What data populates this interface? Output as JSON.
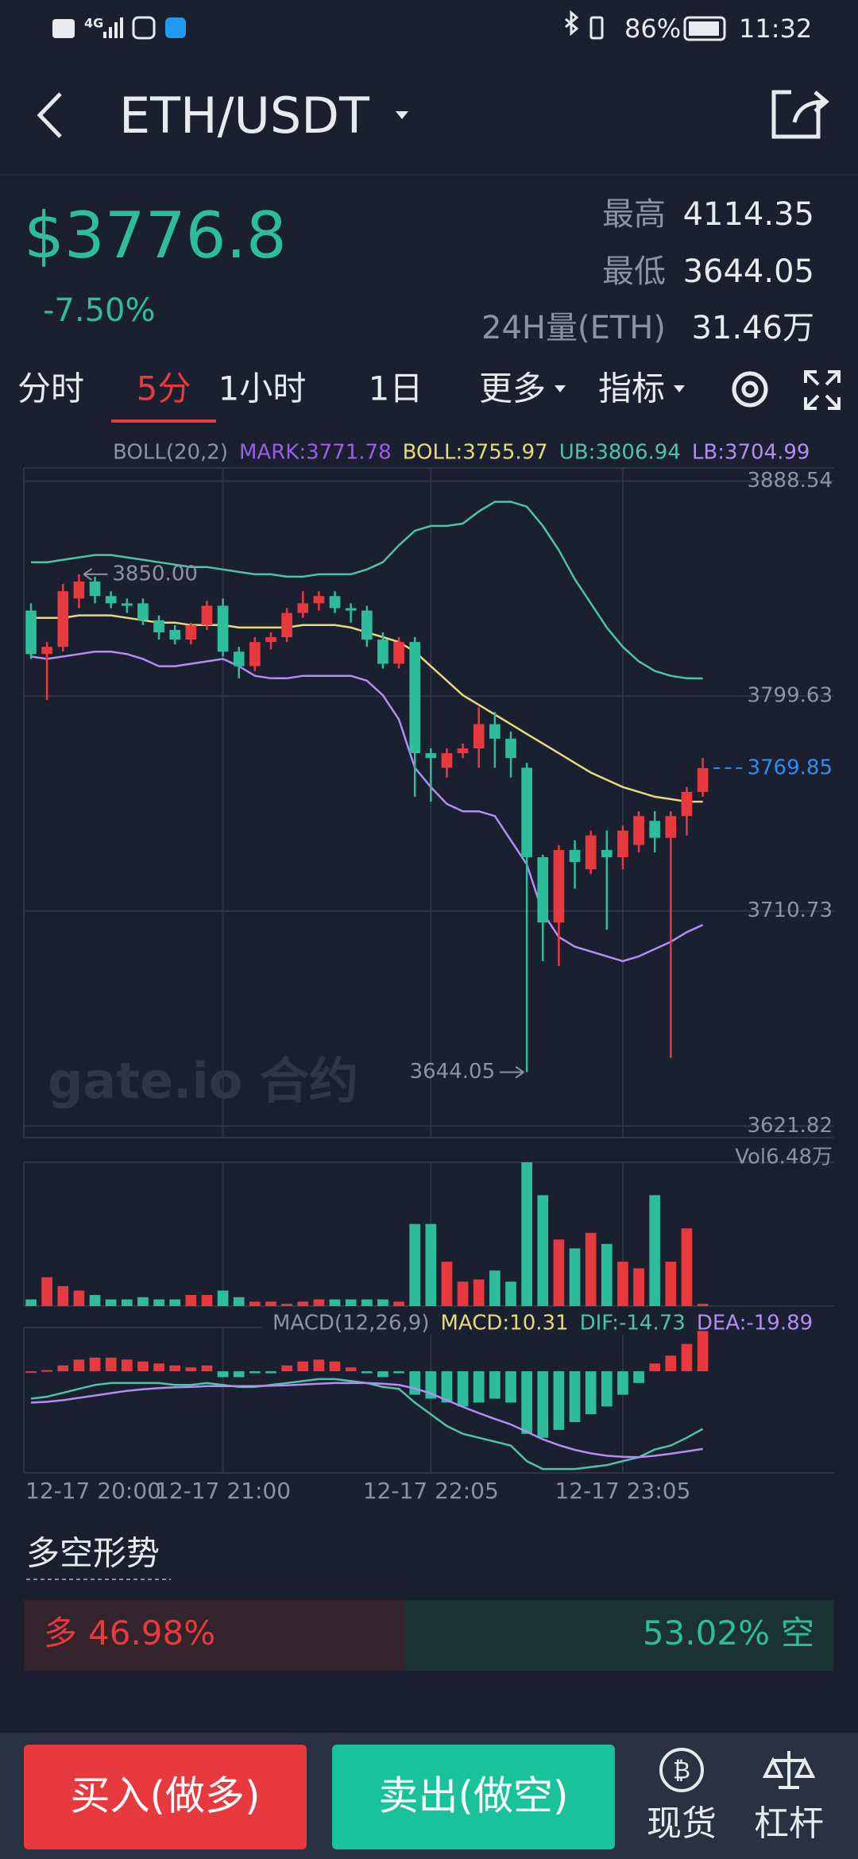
{
  "status_bar": {
    "network": "4G",
    "battery": "86%",
    "time": "11:32"
  },
  "header": {
    "title": "ETH/USDT"
  },
  "ticker": {
    "price": "$3776.8",
    "change": "-7.50%",
    "high_label": "最高",
    "high": "4114.35",
    "low_label": "最低",
    "low": "3644.05",
    "volume_label": "24H量(ETH)",
    "volume": "31.46万"
  },
  "tabs": {
    "items": [
      "分时",
      "5分",
      "1小时",
      "1日",
      "更多",
      "指标"
    ],
    "active": 1
  },
  "watermark": "gate.io 合约",
  "chart_data": [
    {
      "type": "candlestick",
      "legend": [
        {
          "text": "BOLL(20,2)",
          "color": "#8a93a6"
        },
        {
          "text": "MARK:3771.78",
          "color": "#9b5de5"
        },
        {
          "text": "BOLL:3755.97",
          "color": "#e6d97a"
        },
        {
          "text": "UB:3806.94",
          "color": "#4fc2a8"
        },
        {
          "text": "LB:3704.99",
          "color": "#b48cf2"
        }
      ],
      "up_color": "#e8393f",
      "down_color": "#2ebd9b",
      "ylim": [
        3617,
        3894
      ],
      "yticks": [
        3888.54,
        3799.63,
        3710.73,
        3621.82
      ],
      "grid": true,
      "open": [
        3835,
        3817,
        3820,
        3840,
        3847,
        3841,
        3838,
        3838,
        3831,
        3827,
        3823,
        3829,
        3837,
        3818,
        3812,
        3822,
        3824,
        3834,
        3838,
        3841,
        3836,
        3835,
        3823,
        3813,
        3822,
        3776,
        3770,
        3776,
        3778,
        3788,
        3782,
        3770,
        3733,
        3706,
        3736,
        3728,
        3736,
        3733,
        3738,
        3748,
        3741,
        3750,
        3760
      ],
      "high": [
        3838,
        3822,
        3846,
        3850,
        3849,
        3843,
        3840,
        3840,
        3833,
        3829,
        3830,
        3839,
        3840,
        3820,
        3824,
        3826,
        3836,
        3843,
        3843,
        3843,
        3838,
        3837,
        3826,
        3824,
        3824,
        3778,
        3778,
        3780,
        3795,
        3793,
        3785,
        3772,
        3734,
        3738,
        3740,
        3744,
        3744,
        3746,
        3752,
        3752,
        3752,
        3762,
        3774
      ],
      "low": [
        3815,
        3798,
        3818,
        3836,
        3838,
        3836,
        3834,
        3829,
        3823,
        3821,
        3821,
        3827,
        3816,
        3807,
        3810,
        3819,
        3822,
        3832,
        3835,
        3834,
        3830,
        3820,
        3811,
        3811,
        3758,
        3756,
        3766,
        3774,
        3770,
        3770,
        3766,
        3644.05,
        3690,
        3688,
        3720,
        3726,
        3703,
        3728,
        3735,
        3735,
        3650,
        3742,
        3758
      ],
      "close": [
        3817,
        3820,
        3843,
        3847,
        3841,
        3838,
        3837,
        3831,
        3826,
        3823,
        3829,
        3837,
        3818,
        3812,
        3822,
        3824,
        3834,
        3838,
        3841,
        3836,
        3835,
        3823,
        3813,
        3822,
        3776,
        3774,
        3776,
        3778,
        3788,
        3782,
        3774,
        3733,
        3706,
        3736,
        3731,
        3742,
        3733,
        3744,
        3750,
        3741,
        3750,
        3760,
        3769.85
      ],
      "lines": [
        {
          "color": "#4fc2a8",
          "values": [
            3855,
            3855,
            3856,
            3857,
            3858,
            3858,
            3857,
            3856,
            3855,
            3854,
            3853,
            3853,
            3852,
            3851,
            3850,
            3850,
            3849,
            3849,
            3850,
            3850,
            3850,
            3852,
            3855,
            3862,
            3868,
            3870,
            3870,
            3871,
            3876,
            3880,
            3880,
            3878,
            3870,
            3860,
            3848,
            3838,
            3828,
            3820,
            3814,
            3810,
            3808,
            3807,
            3806.94
          ]
        },
        {
          "color": "#e6d97a",
          "values": [
            3832,
            3832,
            3832,
            3833,
            3833,
            3833,
            3832,
            3831,
            3830,
            3830,
            3829,
            3829,
            3829,
            3828,
            3828,
            3828,
            3828,
            3829,
            3829,
            3829,
            3828,
            3826,
            3824,
            3822,
            3818,
            3812,
            3806,
            3800,
            3796,
            3792,
            3788,
            3784,
            3780,
            3776,
            3772,
            3768,
            3765,
            3762,
            3760,
            3758,
            3757,
            3756,
            3755.97
          ]
        },
        {
          "color": "#b48cf2",
          "values": [
            3816,
            3815,
            3816,
            3817,
            3818,
            3818,
            3817,
            3815,
            3812,
            3812,
            3813,
            3814,
            3815,
            3812,
            3808,
            3807,
            3807,
            3808,
            3808,
            3808,
            3808,
            3806,
            3800,
            3790,
            3770,
            3762,
            3755,
            3752,
            3752,
            3750,
            3740,
            3730,
            3710,
            3700,
            3696,
            3694,
            3692,
            3690,
            3692,
            3695,
            3698,
            3702,
            3704.99
          ]
        }
      ],
      "max_marker": {
        "value": 3850,
        "label": "3850.00"
      },
      "min_marker": 3644.05,
      "last_price": {
        "value": 3769.85,
        "color": "#2b8ef0"
      }
    },
    {
      "type": "volume",
      "label": "Vol6.48万",
      "ylim": [
        0,
        6.48
      ],
      "values": [
        0.3,
        1.3,
        0.9,
        0.7,
        0.5,
        0.3,
        0.3,
        0.4,
        0.3,
        0.3,
        0.5,
        0.5,
        0.7,
        0.4,
        0.2,
        0.2,
        0.1,
        0.2,
        0.3,
        0.3,
        0.3,
        0.3,
        0.3,
        0.2,
        3.7,
        3.7,
        2.0,
        1.1,
        1.2,
        1.6,
        1.1,
        6.48,
        5.0,
        3.0,
        2.6,
        3.3,
        2.8,
        2.0,
        1.7,
        5.0,
        2.0,
        3.5,
        0.1
      ]
    },
    {
      "type": "macd",
      "legend": [
        {
          "text": "MACD(12,26,9)",
          "color": "#8a93a6"
        },
        {
          "text": "MACD:10.31",
          "color": "#e6d97a"
        },
        {
          "text": "DIF:-14.73",
          "color": "#4fc2a8"
        },
        {
          "text": "DEA:-19.89",
          "color": "#b48cf2"
        }
      ],
      "ylim": [
        -26,
        11.2
      ],
      "categories": [
        "12-17 20:00",
        null,
        null,
        null,
        null,
        null,
        null,
        null,
        null,
        null,
        null,
        null,
        "12-17 21:00",
        null,
        null,
        null,
        null,
        null,
        null,
        null,
        null,
        null,
        null,
        null,
        null,
        "12-17 22:05",
        null,
        null,
        null,
        null,
        null,
        null,
        null,
        null,
        null,
        null,
        null,
        "12-17 23:05",
        null,
        null,
        null,
        null,
        null
      ],
      "values": [
        0,
        0.3,
        1.5,
        3,
        3.5,
        3.5,
        3,
        2.5,
        2,
        1.5,
        1,
        1.5,
        -1.5,
        -1.5,
        -0.5,
        -0.5,
        1.5,
        2.5,
        3,
        2.5,
        1,
        -0.5,
        -1.5,
        -0.5,
        -6,
        -7,
        -8,
        -9,
        -8,
        -7,
        -8,
        -16,
        -17,
        -15,
        -13,
        -11,
        -9,
        -6,
        -3,
        2,
        4,
        7,
        10.31
      ],
      "series": [
        {
          "color": "#4fc2a8",
          "values": [
            -7,
            -6.5,
            -5.5,
            -4.5,
            -3.5,
            -3,
            -3,
            -3,
            -3,
            -3.5,
            -3.5,
            -3,
            -3.5,
            -4,
            -4,
            -3.5,
            -3,
            -2.5,
            -2,
            -2,
            -2.5,
            -3,
            -4,
            -4.5,
            -8,
            -11,
            -14,
            -16,
            -17,
            -18,
            -19,
            -23,
            -25,
            -25,
            -25,
            -24.5,
            -24,
            -23,
            -22,
            -20,
            -19,
            -17,
            -14.73
          ]
        },
        {
          "color": "#b48cf2",
          "values": [
            -8,
            -7.8,
            -7.4,
            -6.8,
            -6.2,
            -5.6,
            -5,
            -4.6,
            -4.3,
            -4.1,
            -4,
            -3.8,
            -3.8,
            -3.8,
            -3.8,
            -3.7,
            -3.6,
            -3.4,
            -3.2,
            -3,
            -3,
            -3,
            -3.2,
            -3.5,
            -4.4,
            -5.7,
            -7.4,
            -9.1,
            -10.7,
            -12.2,
            -13.6,
            -15.5,
            -17.4,
            -18.9,
            -20.1,
            -21,
            -21.6,
            -21.9,
            -22,
            -21.6,
            -21.1,
            -20.5,
            -19.89
          ]
        }
      ]
    }
  ],
  "long_short": {
    "title": "多空形势",
    "long": {
      "label": "多",
      "value": 46.98,
      "value_label": "46.98%"
    },
    "short": {
      "label": "空",
      "value": 53.02,
      "value_label": "53.02%"
    }
  },
  "footer": {
    "buy": "买入(做多)",
    "sell": "卖出(做空)",
    "spot": "现货",
    "margin": "杠杆"
  }
}
